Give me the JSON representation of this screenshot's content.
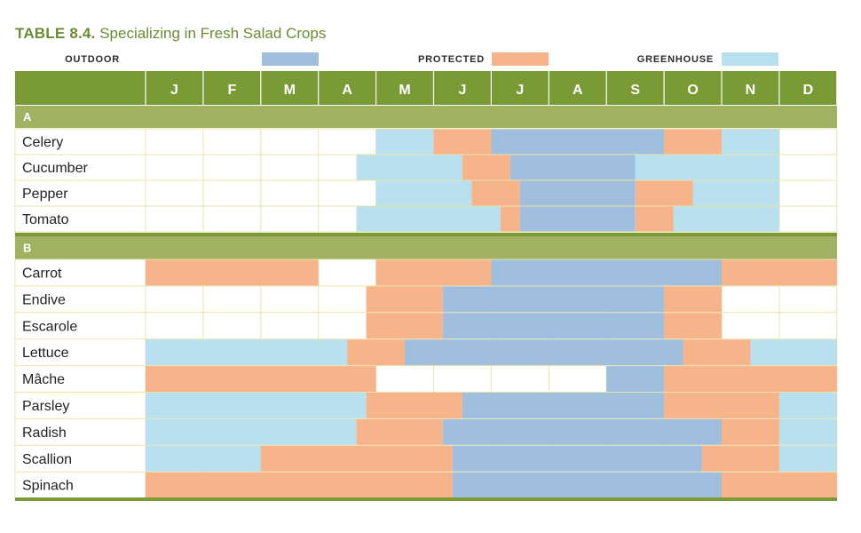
{
  "title": {
    "prefix": "TABLE 8.4.",
    "text": "Specializing in Fresh Salad Crops"
  },
  "colors": {
    "outdoor": "#a0bedd",
    "protected": "#f7b38a",
    "greenhouse": "#b8e0ef",
    "header": "#7a9a35",
    "section": "#a0b262",
    "grid": "#e9e4a8",
    "title": "#6b8c33"
  },
  "chart_data": {
    "type": "table",
    "legend": [
      {
        "key": "outdoor",
        "label": "OUTDOOR"
      },
      {
        "key": "protected",
        "label": "PROTECTED"
      },
      {
        "key": "greenhouse",
        "label": "GREENHOUSE"
      }
    ],
    "months": [
      "J",
      "F",
      "M",
      "A",
      "M",
      "J",
      "J",
      "A",
      "S",
      "O",
      "N",
      "D"
    ],
    "x_unit": "month (0 = start of January, 12 = end of December)",
    "sections": [
      {
        "label": "A",
        "crops": [
          {
            "name": "Celery",
            "segments": [
              {
                "type": "greenhouse",
                "start": 4,
                "end": 5
              },
              {
                "type": "protected",
                "start": 5,
                "end": 6
              },
              {
                "type": "outdoor",
                "start": 6,
                "end": 9
              },
              {
                "type": "protected",
                "start": 9,
                "end": 10
              },
              {
                "type": "greenhouse",
                "start": 10,
                "end": 11
              }
            ]
          },
          {
            "name": "Cucumber",
            "segments": [
              {
                "type": "greenhouse",
                "start": 3.66,
                "end": 5.5
              },
              {
                "type": "protected",
                "start": 5.5,
                "end": 6.33
              },
              {
                "type": "outdoor",
                "start": 6.33,
                "end": 8.5
              },
              {
                "type": "greenhouse",
                "start": 8.5,
                "end": 11
              }
            ]
          },
          {
            "name": "Pepper",
            "segments": [
              {
                "type": "greenhouse",
                "start": 4,
                "end": 5.66
              },
              {
                "type": "protected",
                "start": 5.66,
                "end": 6.5
              },
              {
                "type": "outdoor",
                "start": 6.5,
                "end": 8.5
              },
              {
                "type": "protected",
                "start": 8.5,
                "end": 9.5
              },
              {
                "type": "greenhouse",
                "start": 9.5,
                "end": 11
              }
            ]
          },
          {
            "name": "Tomato",
            "segments": [
              {
                "type": "greenhouse",
                "start": 3.66,
                "end": 6.16
              },
              {
                "type": "protected",
                "start": 6.16,
                "end": 6.5
              },
              {
                "type": "outdoor",
                "start": 6.5,
                "end": 8.5
              },
              {
                "type": "protected",
                "start": 8.5,
                "end": 9.16
              },
              {
                "type": "greenhouse",
                "start": 9.16,
                "end": 11
              }
            ]
          }
        ]
      },
      {
        "label": "B",
        "crops": [
          {
            "name": "Carrot",
            "segments": [
              {
                "type": "protected",
                "start": 0,
                "end": 3
              },
              {
                "type": "protected",
                "start": 4,
                "end": 6
              },
              {
                "type": "outdoor",
                "start": 6,
                "end": 10
              },
              {
                "type": "protected",
                "start": 10,
                "end": 12
              }
            ]
          },
          {
            "name": "Endive",
            "segments": [
              {
                "type": "protected",
                "start": 3.83,
                "end": 5.16
              },
              {
                "type": "outdoor",
                "start": 5.16,
                "end": 9
              },
              {
                "type": "protected",
                "start": 9,
                "end": 10
              }
            ]
          },
          {
            "name": "Escarole",
            "segments": [
              {
                "type": "protected",
                "start": 3.83,
                "end": 5.16
              },
              {
                "type": "outdoor",
                "start": 5.16,
                "end": 9
              },
              {
                "type": "protected",
                "start": 9,
                "end": 10
              }
            ]
          },
          {
            "name": "Lettuce",
            "segments": [
              {
                "type": "greenhouse",
                "start": 0,
                "end": 3.5
              },
              {
                "type": "protected",
                "start": 3.5,
                "end": 4.5
              },
              {
                "type": "outdoor",
                "start": 4.5,
                "end": 9.33
              },
              {
                "type": "protected",
                "start": 9.33,
                "end": 10.5
              },
              {
                "type": "greenhouse",
                "start": 10.5,
                "end": 12
              }
            ]
          },
          {
            "name": "Mâche",
            "segments": [
              {
                "type": "protected",
                "start": 0,
                "end": 4
              },
              {
                "type": "outdoor",
                "start": 8,
                "end": 9
              },
              {
                "type": "protected",
                "start": 9,
                "end": 12
              }
            ]
          },
          {
            "name": "Parsley",
            "segments": [
              {
                "type": "greenhouse",
                "start": 0,
                "end": 3.83
              },
              {
                "type": "protected",
                "start": 3.83,
                "end": 5.5
              },
              {
                "type": "outdoor",
                "start": 5.5,
                "end": 9
              },
              {
                "type": "protected",
                "start": 9,
                "end": 11
              },
              {
                "type": "greenhouse",
                "start": 11,
                "end": 12
              }
            ]
          },
          {
            "name": "Radish",
            "segments": [
              {
                "type": "greenhouse",
                "start": 0,
                "end": 3.66
              },
              {
                "type": "protected",
                "start": 3.66,
                "end": 5.16
              },
              {
                "type": "outdoor",
                "start": 5.16,
                "end": 10
              },
              {
                "type": "protected",
                "start": 10,
                "end": 11
              },
              {
                "type": "greenhouse",
                "start": 11,
                "end": 12
              }
            ]
          },
          {
            "name": "Scallion",
            "segments": [
              {
                "type": "greenhouse",
                "start": 0,
                "end": 2
              },
              {
                "type": "protected",
                "start": 2,
                "end": 5.33
              },
              {
                "type": "outdoor",
                "start": 5.33,
                "end": 9.66
              },
              {
                "type": "protected",
                "start": 9.66,
                "end": 11
              },
              {
                "type": "greenhouse",
                "start": 11,
                "end": 12
              }
            ]
          },
          {
            "name": "Spinach",
            "segments": [
              {
                "type": "protected",
                "start": 0,
                "end": 5.33
              },
              {
                "type": "outdoor",
                "start": 5.33,
                "end": 10
              },
              {
                "type": "protected",
                "start": 10,
                "end": 12
              }
            ]
          }
        ]
      }
    ]
  }
}
